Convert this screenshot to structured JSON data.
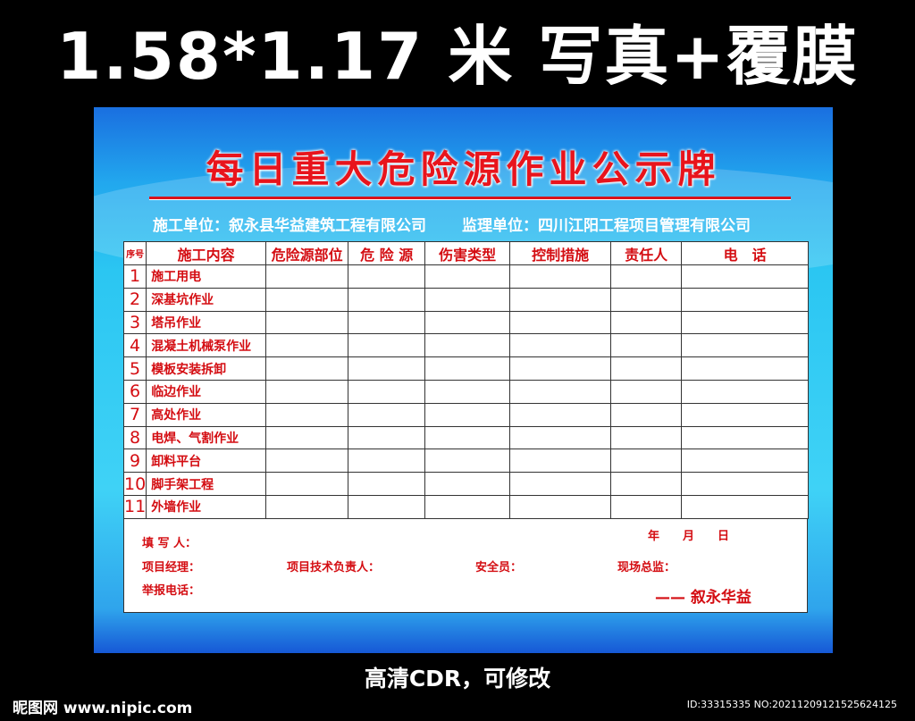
{
  "header": "1.58*1.17 米 写真+覆膜",
  "board": {
    "title": "每日重大危险源作业公示牌",
    "construction_unit": "施工单位：叙永县华益建筑工程有限公司",
    "supervision_unit": "监理单位：四川江阳工程项目管理有限公司",
    "columns": [
      "序号",
      "施工内容",
      "危险源部位",
      "危 险 源",
      "伤害类型",
      "控制措施",
      "责任人",
      "电　话"
    ],
    "rows": [
      {
        "no": "1",
        "content": "施工用电"
      },
      {
        "no": "2",
        "content": "深基坑作业"
      },
      {
        "no": "3",
        "content": "塔吊作业"
      },
      {
        "no": "4",
        "content": "混凝土机械泵作业"
      },
      {
        "no": "5",
        "content": "模板安装拆卸"
      },
      {
        "no": "6",
        "content": "临边作业"
      },
      {
        "no": "7",
        "content": "高处作业"
      },
      {
        "no": "8",
        "content": "电焊、气割作业"
      },
      {
        "no": "9",
        "content": "卸料平台"
      },
      {
        "no": "10",
        "content": "脚手架工程"
      },
      {
        "no": "11",
        "content": "外墙作业"
      }
    ],
    "footer": {
      "filler": "填 写 人：",
      "date": "年　　月　　日",
      "manager": "项目经理：",
      "tech_lead": "项目技术负责人：",
      "safety": "安全员：",
      "supervisor": "现场总监：",
      "report_phone": "举报电话：",
      "signature": "—— 叙永华益"
    }
  },
  "caption": "高清CDR，可修改",
  "watermark": "昵图网 www.nipic.com",
  "image_id": "ID:33315335 NO:20211209121525624125",
  "colors": {
    "accent_red": "#d40d12",
    "board_blue": "#2bc6f2"
  }
}
